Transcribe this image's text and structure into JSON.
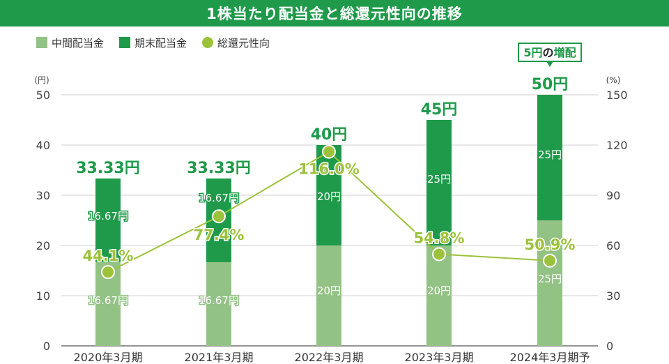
{
  "title": "1株当たり配当金と総還元性向の推移",
  "colors": {
    "interim": "#93c285",
    "year_end": "#1f9a4a",
    "payout": "#9cc23a",
    "title_bg": "#1f9a4a"
  },
  "chart_data": {
    "type": "bar",
    "categories": [
      "2020年3月期",
      "2021年3月期",
      "2022年3月期",
      "2023年3月期",
      "2024年3月期予"
    ],
    "series": [
      {
        "name": "中間配当金",
        "values": [
          16.67,
          16.67,
          20,
          20,
          25
        ],
        "labels": [
          "16.67円",
          "16.67円",
          "20円",
          "20円",
          "25円"
        ]
      },
      {
        "name": "期末配当金",
        "values": [
          16.67,
          16.67,
          20,
          25,
          25
        ],
        "labels": [
          "16.67円",
          "16.67円",
          "20円",
          "25円",
          "25円"
        ]
      }
    ],
    "totals": [
      "33.33円",
      "33.33円",
      "40円",
      "45円",
      "50円"
    ],
    "line_series": {
      "name": "総還元性向",
      "values": [
        44.1,
        77.4,
        116.0,
        54.8,
        50.9
      ],
      "labels": [
        "44.1%",
        "77.4%",
        "116.0%",
        "54.8%",
        "50.9%"
      ]
    },
    "left_axis": {
      "unit": "(円)",
      "ylim": [
        0,
        50
      ],
      "ticks": [
        "0",
        "10",
        "20",
        "30",
        "40",
        "50"
      ]
    },
    "right_axis": {
      "unit": "(%)",
      "ylim": [
        0,
        150
      ],
      "ticks": [
        "0",
        "30",
        "60",
        "90",
        "120",
        "150"
      ]
    },
    "callout": {
      "prefix": "5円",
      "suffix": "の",
      "emph": "増配"
    },
    "stacked": true,
    "grid": true,
    "legend_position": "top-left"
  }
}
